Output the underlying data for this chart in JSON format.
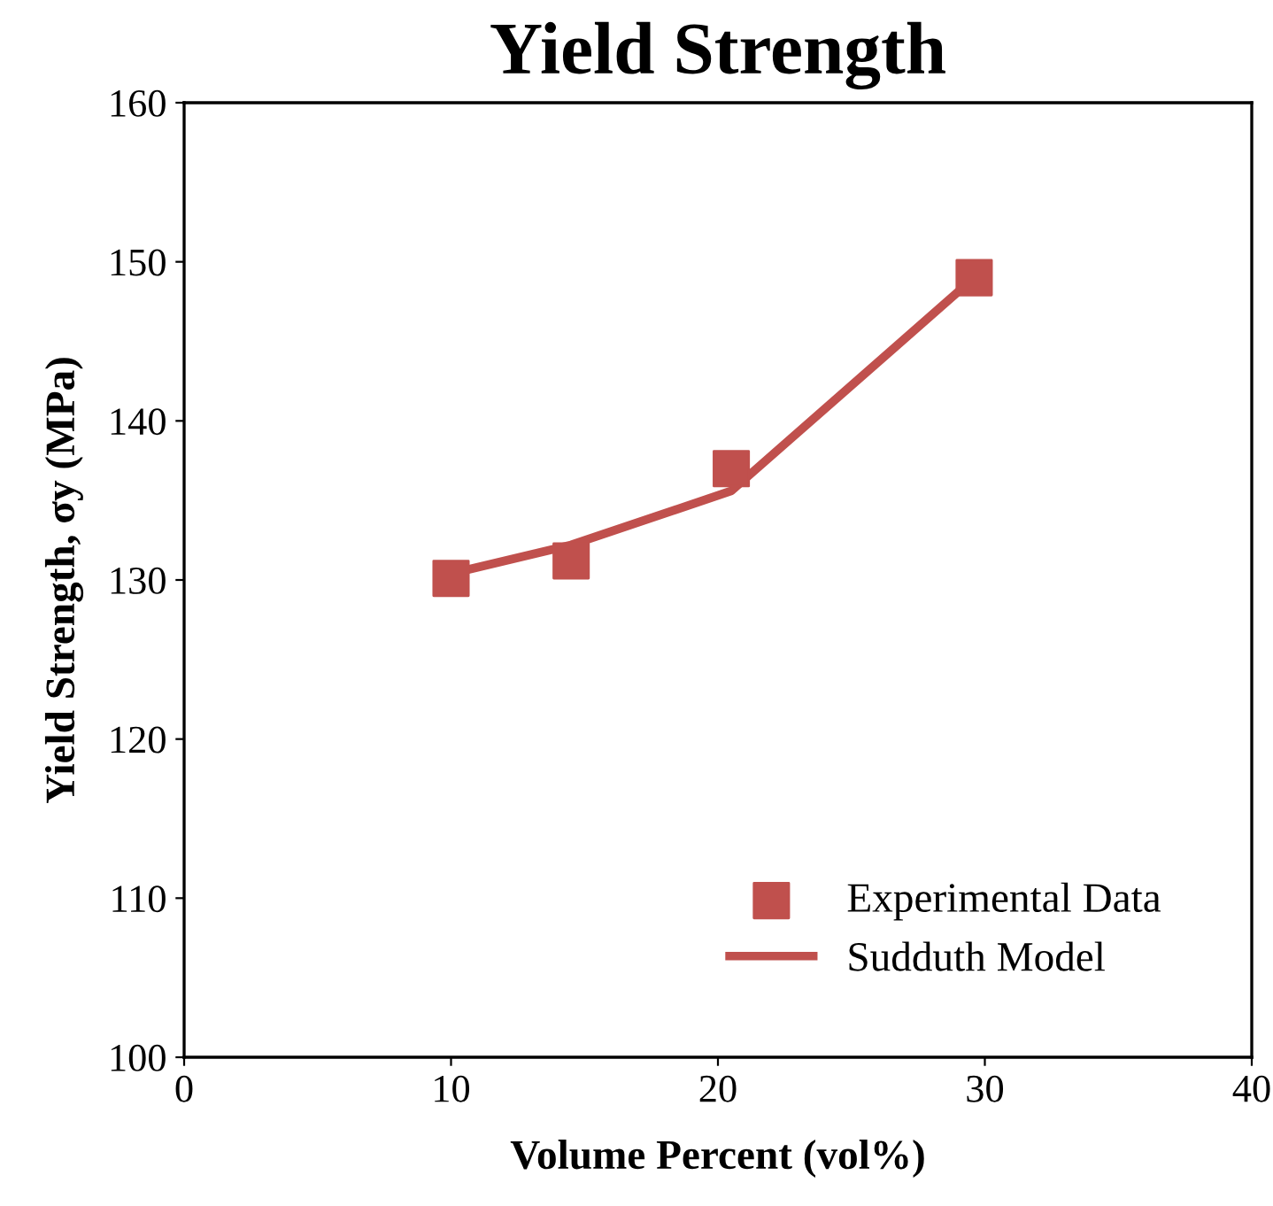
{
  "chart_data": {
    "type": "scatter",
    "title": "Yield Strength",
    "xlabel": "Volume Percent (vol%)",
    "ylabel": "Yield Strength, σy (MPa)",
    "xlim": [
      0,
      40
    ],
    "xticks": [
      0,
      10,
      20,
      30,
      40
    ],
    "ylim": [
      100,
      160
    ],
    "yticks": [
      100,
      110,
      120,
      130,
      140,
      150,
      160
    ],
    "grid": false,
    "legend": "bottom right",
    "series": [
      {
        "name": "Experimental Data",
        "marker": "square",
        "color": "#c0504d",
        "x": [
          10.0,
          14.5,
          20.5,
          29.6
        ],
        "values": [
          130.1,
          131.2,
          137.0,
          149.0
        ]
      },
      {
        "name": "Sudduth Model",
        "type": "line",
        "marker": "none",
        "line_style": "solid",
        "color": "#c0504d",
        "x": [
          10.0,
          14.5,
          20.5,
          29.6
        ],
        "values": [
          130.4,
          132.2,
          135.6,
          149.0
        ]
      }
    ]
  }
}
